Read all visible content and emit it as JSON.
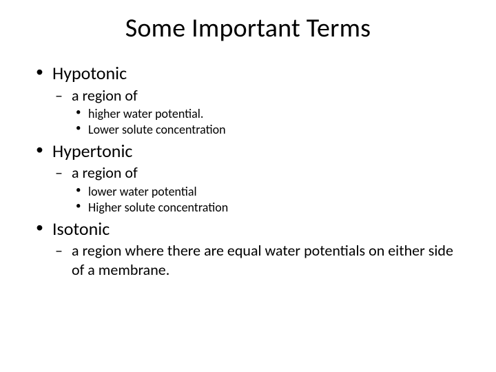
{
  "title": "Some Important Terms",
  "typography": {
    "title_fontsize_pt": 38,
    "l1_fontsize_pt": 26,
    "l2_fontsize_pt": 22,
    "l3_fontsize_pt": 18,
    "font_family": "Calibri",
    "font_weight": "normal"
  },
  "colors": {
    "text": "#000000",
    "background": "#ffffff"
  },
  "bullets": {
    "l1_marker": "•",
    "l2_marker": "–",
    "l3_marker": "•"
  },
  "terms": [
    {
      "name": "Hypotonic",
      "sub": [
        {
          "text": "a region of",
          "sub": [
            {
              "text": "higher water potential."
            },
            {
              "text": "Lower solute concentration"
            }
          ]
        }
      ]
    },
    {
      "name": "Hypertonic",
      "sub": [
        {
          "text": "a region of",
          "sub": [
            {
              "text": "lower water potential"
            },
            {
              "text": "Higher solute concentration"
            }
          ]
        }
      ]
    },
    {
      "name": "Isotonic",
      "sub": [
        {
          "text": "a region where there are equal water potentials on either side of a membrane.",
          "sub": []
        }
      ]
    }
  ]
}
